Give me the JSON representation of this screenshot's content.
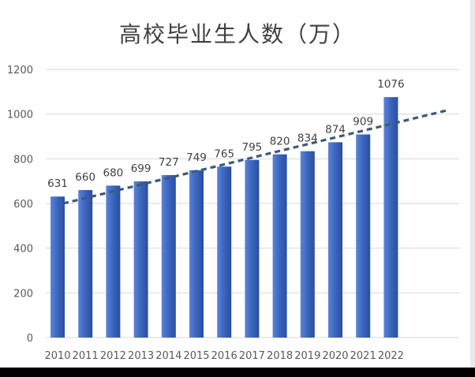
{
  "chart_data": {
    "type": "bar",
    "title": "高校毕业生人数（万）",
    "xlabel": "",
    "ylabel": "",
    "categories": [
      "2010",
      "2011",
      "2012",
      "2013",
      "2014",
      "2015",
      "2016",
      "2017",
      "2018",
      "2019",
      "2020",
      "2021",
      "2022"
    ],
    "values": [
      631,
      660,
      680,
      699,
      727,
      749,
      765,
      795,
      820,
      834,
      874,
      909,
      1076
    ],
    "ylim": [
      0,
      1200
    ],
    "yticks": [
      0,
      200,
      400,
      600,
      800,
      1000,
      1200
    ],
    "grid": true,
    "trendline": {
      "style": "dashed",
      "start": 600,
      "end": 1018
    },
    "colors": {
      "bar": "#3a64be",
      "bar_dark": "#274a96",
      "trend": "#3c5a78",
      "grid": "#d9d9d9"
    }
  }
}
